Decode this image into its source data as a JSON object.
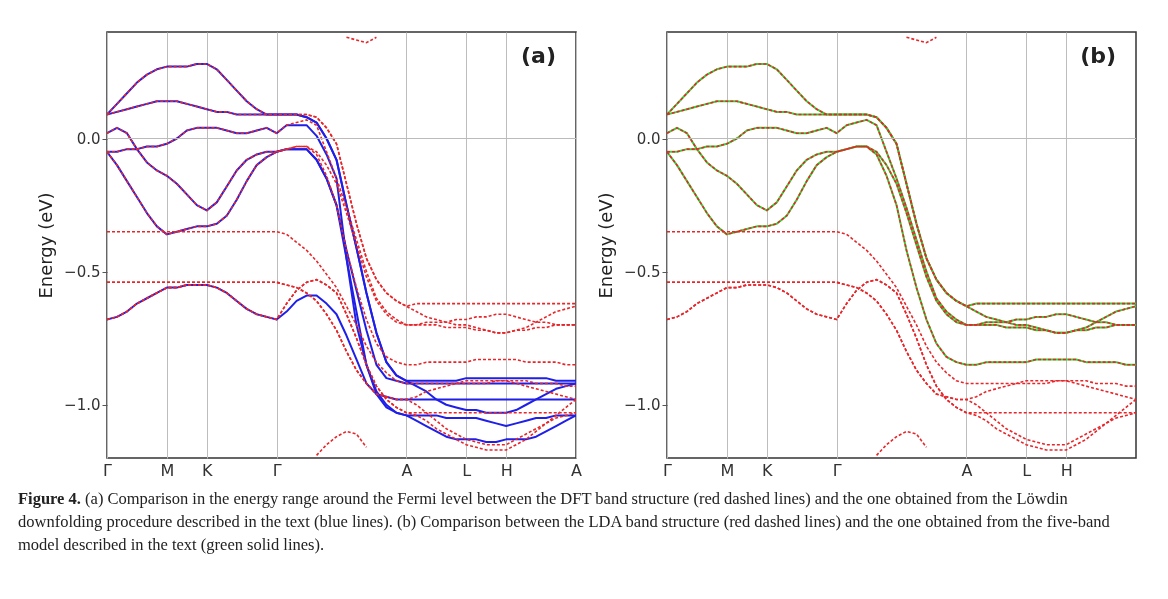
{
  "chart_data": [
    {
      "type": "line",
      "ylabel": "Energy (eV)",
      "annotations": [
        "(a)"
      ],
      "categories": [
        "Γ",
        null,
        null,
        null,
        null,
        null,
        "M",
        null,
        null,
        null,
        "K",
        null,
        null,
        null,
        null,
        null,
        null,
        "Γ",
        null,
        null,
        null,
        null,
        null,
        null,
        null,
        null,
        null,
        null,
        null,
        null,
        "A",
        null,
        null,
        null,
        null,
        null,
        "L",
        null,
        null,
        null,
        "H",
        null,
        null,
        null,
        null,
        null,
        null,
        "A"
      ],
      "ylim": [
        -1.2,
        0.4
      ],
      "yticks": [
        {
          "value": -1,
          "label": "−1.0"
        },
        {
          "value": -0.5,
          "label": "−0.5"
        },
        {
          "value": 0,
          "label": "0.0"
        }
      ],
      "grid": "x",
      "ref_lines": [
        {
          "axis": "y",
          "value": 0,
          "color": "#bbbbbb"
        }
      ],
      "series": [
        {
          "color": "#1f1fe8",
          "line_style": "solid",
          "values": [
            0.09,
            0.13,
            0.17,
            0.21,
            0.24,
            0.26,
            0.27,
            0.27,
            0.27,
            0.28,
            0.28,
            0.26,
            0.22,
            0.18,
            0.14,
            0.11,
            0.09,
            0.09,
            0.09,
            0.09,
            0.08,
            0.06,
            0,
            -0.08,
            -0.25,
            -0.41,
            -0.58,
            -0.73,
            -0.84,
            -0.89,
            -0.91,
            -0.91,
            -0.91,
            -0.91,
            -0.91,
            -0.91,
            -0.9,
            -0.9,
            -0.9,
            -0.9,
            -0.9,
            -0.9,
            -0.9,
            -0.9,
            -0.9,
            -0.91,
            -0.91,
            -0.91
          ]
        },
        {
          "color": "#1f1fe8",
          "line_style": "solid",
          "values": [
            0.09,
            0.1,
            0.11,
            0.12,
            0.13,
            0.14,
            0.14,
            0.14,
            0.13,
            0.12,
            0.11,
            0.1,
            0.1,
            0.09,
            0.09,
            0.09,
            0.09,
            0.09,
            0.09,
            0.09,
            0.08,
            0.06,
            0,
            -0.08,
            -0.25,
            -0.41,
            -0.58,
            -0.73,
            -0.84,
            -0.89,
            -0.91,
            -0.93,
            -0.95,
            -0.98,
            -1,
            -1.01,
            -1.02,
            -1.02,
            -1.03,
            -1.03,
            -1.03,
            -1.02,
            -1,
            -0.98,
            -0.96,
            -0.94,
            -0.93,
            -0.92
          ]
        },
        {
          "color": "#1f1fe8",
          "line_style": "solid",
          "values": [
            0.02,
            0.04,
            0.02,
            -0.04,
            -0.09,
            -0.12,
            -0.14,
            -0.17,
            -0.21,
            -0.25,
            -0.27,
            -0.24,
            -0.18,
            -0.12,
            -0.08,
            -0.06,
            -0.05,
            -0.05,
            -0.04,
            -0.04,
            -0.04,
            -0.08,
            -0.15,
            -0.25,
            -0.45,
            -0.65,
            -0.85,
            -0.96,
            -1.01,
            -1.03,
            -1.04,
            -1.06,
            -1.08,
            -1.1,
            -1.12,
            -1.13,
            -1.13,
            -1.13,
            -1.14,
            -1.14,
            -1.13,
            -1.13,
            -1.13,
            -1.12,
            -1.1,
            -1.08,
            -1.06,
            -1.04
          ]
        },
        {
          "color": "#1f1fe8",
          "line_style": "solid",
          "values": [
            -0.05,
            -0.05,
            -0.04,
            -0.04,
            -0.03,
            -0.03,
            -0.02,
            0,
            0.03,
            0.04,
            0.04,
            0.04,
            0.03,
            0.02,
            0.02,
            0.03,
            0.04,
            0.02,
            0.05,
            0.05,
            0.05,
            0.01,
            -0.06,
            -0.15,
            -0.45,
            -0.7,
            -0.85,
            -0.95,
            -1,
            -1.03,
            -1.04,
            -1.04,
            -1.04,
            -1.04,
            -1.05,
            -1.05,
            -1.05,
            -1.05,
            -1.06,
            -1.07,
            -1.08,
            -1.07,
            -1.06,
            -1.05,
            -1.05,
            -1.04,
            -1.04,
            -1.04
          ]
        },
        {
          "color": "#1f1fe8",
          "line_style": "solid",
          "values": [
            -0.05,
            -0.1,
            -0.16,
            -0.22,
            -0.28,
            -0.33,
            -0.36,
            -0.35,
            -0.34,
            -0.33,
            -0.33,
            -0.32,
            -0.29,
            -0.23,
            -0.16,
            -0.1,
            -0.07,
            -0.05,
            -0.04,
            -0.04,
            -0.04,
            -0.08,
            -0.15,
            -0.25,
            -0.42,
            -0.57,
            -0.72,
            -0.85,
            -0.9,
            -0.91,
            -0.92,
            -0.92,
            -0.92,
            -0.92,
            -0.92,
            -0.92,
            -0.92,
            -0.92,
            -0.92,
            -0.92,
            -0.92,
            -0.92,
            -0.92,
            -0.92,
            -0.92,
            -0.92,
            -0.92,
            -0.92
          ]
        },
        {
          "color": "#1f1fe8",
          "line_style": "solid",
          "values": [
            -0.68,
            -0.67,
            -0.65,
            -0.62,
            -0.6,
            -0.58,
            -0.56,
            -0.56,
            -0.55,
            -0.55,
            -0.55,
            -0.56,
            -0.58,
            -0.61,
            -0.64,
            -0.66,
            -0.67,
            -0.68,
            -0.65,
            -0.61,
            -0.59,
            -0.59,
            -0.62,
            -0.66,
            -0.74,
            -0.83,
            -0.92,
            -0.96,
            -0.97,
            -0.98,
            -0.98,
            -0.98,
            -0.98,
            -0.98,
            -0.98,
            -0.98,
            -0.98,
            -0.98,
            -0.98,
            -0.98,
            -0.98,
            -0.98,
            -0.98,
            -0.98,
            -0.98,
            -0.98,
            -0.98,
            -0.98
          ]
        },
        {
          "color": "#e8262a",
          "line_style": "dashed",
          "values": [
            0.09,
            0.13,
            0.17,
            0.21,
            0.24,
            0.26,
            0.27,
            0.27,
            0.27,
            0.28,
            0.28,
            0.26,
            0.22,
            0.18,
            0.14,
            0.11,
            0.09,
            0.09,
            0.09,
            0.09,
            0.09,
            0.08,
            0.04,
            -0.02,
            -0.17,
            -0.32,
            -0.45,
            -0.53,
            -0.58,
            -0.61,
            -0.63,
            -0.62,
            -0.62,
            -0.62,
            -0.62,
            -0.62,
            -0.62,
            -0.62,
            -0.62,
            -0.62,
            -0.62,
            -0.62,
            -0.62,
            -0.62,
            -0.62,
            -0.62,
            -0.62,
            -0.62
          ]
        },
        {
          "color": "#e8262a",
          "line_style": "dashed",
          "values": [
            0.09,
            0.1,
            0.11,
            0.12,
            0.13,
            0.14,
            0.14,
            0.14,
            0.13,
            0.12,
            0.11,
            0.1,
            0.1,
            0.09,
            0.09,
            0.09,
            0.09,
            0.09,
            0.09,
            0.09,
            0.09,
            0.08,
            0.04,
            -0.02,
            -0.17,
            -0.32,
            -0.45,
            -0.53,
            -0.58,
            -0.61,
            -0.63,
            -0.65,
            -0.67,
            -0.68,
            -0.69,
            -0.7,
            -0.7,
            -0.71,
            -0.72,
            -0.73,
            -0.73,
            -0.72,
            -0.71,
            -0.69,
            -0.67,
            -0.65,
            -0.64,
            -0.63
          ]
        },
        {
          "color": "#e8262a",
          "line_style": "dashed",
          "values": [
            -0.05,
            -0.05,
            -0.04,
            -0.04,
            -0.03,
            -0.03,
            -0.02,
            0,
            0.03,
            0.04,
            0.04,
            0.04,
            0.03,
            0.02,
            0.02,
            0.03,
            0.04,
            0.02,
            0.05,
            0.06,
            0.07,
            0.05,
            -0.05,
            -0.15,
            -0.26,
            -0.38,
            -0.5,
            -0.6,
            -0.65,
            -0.68,
            -0.7,
            -0.7,
            -0.69,
            -0.69,
            -0.69,
            -0.68,
            -0.68,
            -0.67,
            -0.67,
            -0.66,
            -0.66,
            -0.67,
            -0.68,
            -0.69,
            -0.69,
            -0.7,
            -0.7,
            -0.7
          ]
        },
        {
          "color": "#e8262a",
          "line_style": "dashed",
          "values": [
            0.02,
            0.04,
            0.02,
            -0.04,
            -0.09,
            -0.12,
            -0.14,
            -0.17,
            -0.21,
            -0.25,
            -0.27,
            -0.24,
            -0.18,
            -0.12,
            -0.08,
            -0.06,
            -0.05,
            -0.05,
            -0.04,
            -0.03,
            -0.03,
            -0.06,
            -0.14,
            -0.25,
            -0.42,
            -0.56,
            -0.68,
            -0.77,
            -0.82,
            -0.84,
            -0.85,
            -0.85,
            -0.84,
            -0.84,
            -0.84,
            -0.84,
            -0.84,
            -0.83,
            -0.83,
            -0.83,
            -0.83,
            -0.83,
            -0.84,
            -0.84,
            -0.84,
            -0.84,
            -0.85,
            -0.85
          ]
        },
        {
          "color": "#e8262a",
          "line_style": "dashed",
          "values": [
            -0.05,
            -0.1,
            -0.16,
            -0.22,
            -0.28,
            -0.33,
            -0.36,
            -0.35,
            -0.34,
            -0.33,
            -0.33,
            -0.32,
            -0.29,
            -0.23,
            -0.16,
            -0.1,
            -0.07,
            -0.05,
            -0.04,
            -0.03,
            -0.03,
            -0.05,
            -0.1,
            -0.17,
            -0.28,
            -0.4,
            -0.52,
            -0.61,
            -0.66,
            -0.69,
            -0.7,
            -0.7,
            -0.7,
            -0.7,
            -0.71,
            -0.71,
            -0.71,
            -0.72,
            -0.72,
            -0.73,
            -0.73,
            -0.72,
            -0.72,
            -0.71,
            -0.71,
            -0.7,
            -0.7,
            -0.7
          ]
        },
        {
          "color": "#e8262a",
          "line_style": "dashed",
          "values": [
            -0.68,
            -0.67,
            -0.65,
            -0.62,
            -0.6,
            -0.58,
            -0.56,
            -0.56,
            -0.55,
            -0.55,
            -0.55,
            -0.56,
            -0.58,
            -0.61,
            -0.64,
            -0.66,
            -0.67,
            -0.68,
            -0.62,
            -0.57,
            -0.54,
            -0.53,
            -0.55,
            -0.58,
            -0.66,
            -0.75,
            -0.85,
            -0.93,
            -0.98,
            -1.01,
            -1.03,
            -1.03,
            -1.03,
            -1.03,
            -1.03,
            -1.03,
            -1.03,
            -1.03,
            -1.03,
            -1.03,
            -1.03,
            -1.03,
            -1.03,
            -1.03,
            -1.03,
            -1.03,
            -1.03,
            -1.03
          ]
        },
        {
          "color": "#e8262a",
          "line_style": "dashed",
          "values": [
            -0.35,
            -0.35,
            -0.35,
            -0.35,
            -0.35,
            -0.35,
            -0.35,
            -0.35,
            -0.35,
            -0.35,
            -0.35,
            -0.35,
            -0.35,
            -0.35,
            -0.35,
            -0.35,
            -0.35,
            -0.35,
            -0.36,
            -0.39,
            -0.42,
            -0.46,
            -0.51,
            -0.56,
            -0.63,
            -0.7,
            -0.78,
            -0.84,
            -0.88,
            -0.91,
            -0.92,
            -0.92,
            -0.92,
            -0.92,
            -0.92,
            -0.92,
            -0.91,
            -0.91,
            -0.91,
            -0.91,
            -0.91,
            -0.91,
            -0.91,
            -0.92,
            -0.92,
            -0.92,
            -0.93,
            -0.93
          ]
        },
        {
          "color": "#e8262a",
          "line_style": "dashed",
          "values": [
            -0.54,
            -0.54,
            -0.54,
            -0.54,
            -0.54,
            -0.54,
            -0.54,
            -0.54,
            -0.54,
            -0.54,
            -0.54,
            -0.54,
            -0.54,
            -0.54,
            -0.54,
            -0.54,
            -0.54,
            -0.54,
            -0.55,
            -0.56,
            -0.58,
            -0.61,
            -0.66,
            -0.72,
            -0.8,
            -0.87,
            -0.92,
            -0.96,
            -0.97,
            -0.98,
            -0.98,
            -0.97,
            -0.95,
            -0.94,
            -0.93,
            -0.92,
            -0.92,
            -0.92,
            -0.92,
            -0.91,
            -0.91,
            -0.92,
            -0.93,
            -0.94,
            -0.95,
            -0.96,
            -0.97,
            -0.98
          ]
        },
        {
          "color": "#e8262a",
          "line_style": "dashed",
          "values": [
            -0.54,
            -0.54,
            -0.54,
            -0.54,
            -0.54,
            -0.54,
            -0.54,
            -0.54,
            -0.54,
            -0.54,
            -0.54,
            -0.54,
            -0.54,
            -0.54,
            -0.54,
            -0.54,
            -0.54,
            -0.54,
            -0.55,
            -0.56,
            -0.58,
            -0.61,
            -0.66,
            -0.72,
            -0.8,
            -0.87,
            -0.92,
            -0.96,
            -0.97,
            -0.98,
            -0.98,
            -1,
            -1.03,
            -1.06,
            -1.09,
            -1.11,
            -1.13,
            -1.14,
            -1.15,
            -1.15,
            -1.15,
            -1.13,
            -1.11,
            -1.09,
            -1.07,
            -1.05,
            -1.04,
            -1.03
          ]
        },
        {
          "color": "#e8262a",
          "line_style": "dashed",
          "values": [
            -0.68,
            -0.67,
            -0.65,
            -0.62,
            -0.6,
            -0.58,
            -0.56,
            -0.56,
            -0.55,
            -0.55,
            -0.55,
            -0.56,
            -0.58,
            -0.61,
            -0.64,
            -0.66,
            -0.67,
            -0.68,
            -0.62,
            -0.57,
            -0.54,
            -0.53,
            -0.55,
            -0.58,
            -0.66,
            -0.75,
            -0.85,
            -0.93,
            -0.98,
            -1.01,
            -1.03,
            -1.04,
            -1.06,
            -1.09,
            -1.11,
            -1.13,
            -1.15,
            -1.16,
            -1.17,
            -1.17,
            -1.17,
            -1.15,
            -1.13,
            -1.1,
            -1.07,
            -1.04,
            -1.01,
            -0.98
          ]
        },
        {
          "color": "#e8262a",
          "line_style": "dashed",
          "values": [
            null,
            null,
            null,
            null,
            null,
            null,
            null,
            null,
            null,
            null,
            null,
            null,
            null,
            null,
            null,
            null,
            null,
            null,
            null,
            null,
            null,
            -1.19,
            -1.15,
            -1.12,
            -1.1,
            -1.11,
            -1.16,
            null,
            null,
            null,
            null,
            null,
            null,
            null,
            null,
            null,
            null,
            null,
            null,
            null,
            null,
            null,
            null,
            null,
            null,
            null,
            null,
            null
          ]
        },
        {
          "color": "#e8262a",
          "line_style": "dashed",
          "values": [
            null,
            null,
            null,
            null,
            null,
            null,
            null,
            null,
            null,
            null,
            null,
            null,
            null,
            null,
            null,
            null,
            null,
            null,
            null,
            null,
            null,
            null,
            null,
            null,
            0.38,
            0.37,
            0.36,
            0.38,
            null,
            null,
            null,
            null,
            null,
            null,
            null,
            null,
            null,
            null,
            null,
            null,
            null,
            null,
            null,
            null,
            null,
            null,
            null,
            null
          ]
        }
      ]
    },
    {
      "type": "line",
      "ylabel": "Energy (eV)",
      "annotations": [
        "(b)",
        "Figure 4. (a) Comparison in the energy range around the Fermi level between the DFT band structure (red dashed lines) and the one obtained from the Löwdin downfolding procedure described in the text (blue lines). (b) Comparison between the LDA band structure (red dashed lines) and the one obtained from the five-band model described in the text (green solid lines)."
      ],
      "categories": [
        "Γ",
        null,
        null,
        null,
        null,
        null,
        "M",
        null,
        null,
        null,
        "K",
        null,
        null,
        null,
        null,
        null,
        null,
        "Γ",
        null,
        null,
        null,
        null,
        null,
        null,
        null,
        null,
        null,
        null,
        null,
        null,
        "A",
        null,
        null,
        null,
        null,
        null,
        "L",
        null,
        null,
        null,
        "H",
        null,
        null,
        null,
        null,
        null,
        null,
        null
      ],
      "ylim": [
        -1.2,
        0.4
      ],
      "yticks": [
        {
          "value": -1,
          "label": "−1.0"
        },
        {
          "value": -0.5,
          "label": "−0.5"
        },
        {
          "value": 0,
          "label": "0.0"
        }
      ],
      "grid": "x",
      "ref_lines": [
        {
          "axis": "y",
          "value": 0,
          "color": "#bbbbbb"
        }
      ],
      "series": [
        {
          "color": "#3ccf3c",
          "line_style": "solid",
          "values": [
            0.09,
            0.13,
            0.17,
            0.21,
            0.24,
            0.26,
            0.27,
            0.27,
            0.27,
            0.28,
            0.28,
            0.26,
            0.22,
            0.18,
            0.14,
            0.11,
            0.09,
            0.09,
            0.09,
            0.09,
            0.09,
            0.08,
            0.04,
            -0.02,
            -0.17,
            -0.32,
            -0.45,
            -0.53,
            -0.58,
            -0.61,
            -0.63,
            -0.62,
            -0.62,
            -0.62,
            -0.62,
            -0.62,
            -0.62,
            -0.62,
            -0.62,
            -0.62,
            -0.62,
            -0.62,
            -0.62,
            -0.62,
            -0.62,
            -0.62,
            -0.62,
            -0.62
          ]
        },
        {
          "color": "#3ccf3c",
          "line_style": "solid",
          "values": [
            0.09,
            0.1,
            0.11,
            0.12,
            0.13,
            0.14,
            0.14,
            0.14,
            0.13,
            0.12,
            0.11,
            0.1,
            0.1,
            0.09,
            0.09,
            0.09,
            0.09,
            0.09,
            0.09,
            0.09,
            0.09,
            0.08,
            0.04,
            -0.02,
            -0.17,
            -0.32,
            -0.45,
            -0.53,
            -0.58,
            -0.61,
            -0.63,
            -0.65,
            -0.67,
            -0.68,
            -0.69,
            -0.7,
            -0.7,
            -0.71,
            -0.72,
            -0.73,
            -0.73,
            -0.72,
            -0.71,
            -0.69,
            -0.67,
            -0.65,
            -0.64,
            -0.63
          ]
        },
        {
          "color": "#3ccf3c",
          "line_style": "solid",
          "values": [
            -0.05,
            -0.05,
            -0.04,
            -0.04,
            -0.03,
            -0.03,
            -0.02,
            0,
            0.03,
            0.04,
            0.04,
            0.04,
            0.03,
            0.02,
            0.02,
            0.03,
            0.04,
            0.02,
            0.05,
            0.06,
            0.07,
            0.05,
            -0.05,
            -0.15,
            -0.26,
            -0.38,
            -0.5,
            -0.6,
            -0.65,
            -0.68,
            -0.7,
            -0.7,
            -0.69,
            -0.69,
            -0.69,
            -0.68,
            -0.68,
            -0.67,
            -0.67,
            -0.66,
            -0.66,
            -0.67,
            -0.68,
            -0.69,
            -0.69,
            -0.7,
            -0.7,
            -0.7
          ]
        },
        {
          "color": "#3ccf3c",
          "line_style": "solid",
          "values": [
            0.02,
            0.04,
            0.02,
            -0.04,
            -0.09,
            -0.12,
            -0.14,
            -0.17,
            -0.21,
            -0.25,
            -0.27,
            -0.24,
            -0.18,
            -0.12,
            -0.08,
            -0.06,
            -0.05,
            -0.05,
            -0.04,
            -0.03,
            -0.03,
            -0.06,
            -0.14,
            -0.25,
            -0.42,
            -0.56,
            -0.68,
            -0.77,
            -0.82,
            -0.84,
            -0.85,
            -0.85,
            -0.84,
            -0.84,
            -0.84,
            -0.84,
            -0.84,
            -0.83,
            -0.83,
            -0.83,
            -0.83,
            -0.83,
            -0.84,
            -0.84,
            -0.84,
            -0.84,
            -0.85,
            -0.85
          ]
        },
        {
          "color": "#3ccf3c",
          "line_style": "solid",
          "values": [
            -0.05,
            -0.1,
            -0.16,
            -0.22,
            -0.28,
            -0.33,
            -0.36,
            -0.35,
            -0.34,
            -0.33,
            -0.33,
            -0.32,
            -0.29,
            -0.23,
            -0.16,
            -0.1,
            -0.07,
            -0.05,
            -0.04,
            -0.03,
            -0.03,
            -0.05,
            -0.1,
            -0.17,
            -0.28,
            -0.4,
            -0.52,
            -0.61,
            -0.66,
            -0.69,
            -0.7,
            -0.7,
            -0.7,
            -0.7,
            -0.71,
            -0.71,
            -0.71,
            -0.72,
            -0.72,
            -0.73,
            -0.73,
            -0.72,
            -0.72,
            -0.71,
            -0.71,
            -0.7,
            -0.7,
            -0.7
          ]
        },
        {
          "color": "#e8262a",
          "line_style": "dashed",
          "values": [
            0.09,
            0.13,
            0.17,
            0.21,
            0.24,
            0.26,
            0.27,
            0.27,
            0.27,
            0.28,
            0.28,
            0.26,
            0.22,
            0.18,
            0.14,
            0.11,
            0.09,
            0.09,
            0.09,
            0.09,
            0.09,
            0.08,
            0.04,
            -0.02,
            -0.17,
            -0.32,
            -0.45,
            -0.53,
            -0.58,
            -0.61,
            -0.63,
            -0.62,
            -0.62,
            -0.62,
            -0.62,
            -0.62,
            -0.62,
            -0.62,
            -0.62,
            -0.62,
            -0.62,
            -0.62,
            -0.62,
            -0.62,
            -0.62,
            -0.62,
            -0.62,
            -0.62
          ]
        },
        {
          "color": "#e8262a",
          "line_style": "dashed",
          "values": [
            0.09,
            0.1,
            0.11,
            0.12,
            0.13,
            0.14,
            0.14,
            0.14,
            0.13,
            0.12,
            0.11,
            0.1,
            0.1,
            0.09,
            0.09,
            0.09,
            0.09,
            0.09,
            0.09,
            0.09,
            0.09,
            0.08,
            0.04,
            -0.02,
            -0.17,
            -0.32,
            -0.45,
            -0.53,
            -0.58,
            -0.61,
            -0.63,
            -0.65,
            -0.67,
            -0.68,
            -0.69,
            -0.7,
            -0.7,
            -0.71,
            -0.72,
            -0.73,
            -0.73,
            -0.72,
            -0.71,
            -0.69,
            -0.67,
            -0.65,
            -0.64,
            -0.63
          ]
        },
        {
          "color": "#e8262a",
          "line_style": "dashed",
          "values": [
            -0.05,
            -0.05,
            -0.04,
            -0.04,
            -0.03,
            -0.03,
            -0.02,
            0,
            0.03,
            0.04,
            0.04,
            0.04,
            0.03,
            0.02,
            0.02,
            0.03,
            0.04,
            0.02,
            0.05,
            0.06,
            0.07,
            0.05,
            -0.05,
            -0.15,
            -0.26,
            -0.38,
            -0.5,
            -0.6,
            -0.65,
            -0.68,
            -0.7,
            -0.7,
            -0.69,
            -0.69,
            -0.69,
            -0.68,
            -0.68,
            -0.67,
            -0.67,
            -0.66,
            -0.66,
            -0.67,
            -0.68,
            -0.69,
            -0.69,
            -0.7,
            -0.7,
            -0.7
          ]
        },
        {
          "color": "#e8262a",
          "line_style": "dashed",
          "values": [
            0.02,
            0.04,
            0.02,
            -0.04,
            -0.09,
            -0.12,
            -0.14,
            -0.17,
            -0.21,
            -0.25,
            -0.27,
            -0.24,
            -0.18,
            -0.12,
            -0.08,
            -0.06,
            -0.05,
            -0.05,
            -0.04,
            -0.03,
            -0.03,
            -0.06,
            -0.14,
            -0.25,
            -0.42,
            -0.56,
            -0.68,
            -0.77,
            -0.82,
            -0.84,
            -0.85,
            -0.85,
            -0.84,
            -0.84,
            -0.84,
            -0.84,
            -0.84,
            -0.83,
            -0.83,
            -0.83,
            -0.83,
            -0.83,
            -0.84,
            -0.84,
            -0.84,
            -0.84,
            -0.85,
            -0.85
          ]
        },
        {
          "color": "#e8262a",
          "line_style": "dashed",
          "values": [
            -0.05,
            -0.1,
            -0.16,
            -0.22,
            -0.28,
            -0.33,
            -0.36,
            -0.35,
            -0.34,
            -0.33,
            -0.33,
            -0.32,
            -0.29,
            -0.23,
            -0.16,
            -0.1,
            -0.07,
            -0.05,
            -0.04,
            -0.03,
            -0.03,
            -0.05,
            -0.1,
            -0.17,
            -0.28,
            -0.4,
            -0.52,
            -0.61,
            -0.66,
            -0.69,
            -0.7,
            -0.7,
            -0.7,
            -0.7,
            -0.71,
            -0.71,
            -0.71,
            -0.72,
            -0.72,
            -0.73,
            -0.73,
            -0.72,
            -0.72,
            -0.71,
            -0.71,
            -0.7,
            -0.7,
            -0.7
          ]
        },
        {
          "color": "#e8262a",
          "line_style": "dashed",
          "values": [
            -0.68,
            -0.67,
            -0.65,
            -0.62,
            -0.6,
            -0.58,
            -0.56,
            -0.56,
            -0.55,
            -0.55,
            -0.55,
            -0.56,
            -0.58,
            -0.61,
            -0.64,
            -0.66,
            -0.67,
            -0.68,
            -0.62,
            -0.57,
            -0.54,
            -0.53,
            -0.55,
            -0.58,
            -0.66,
            -0.75,
            -0.85,
            -0.93,
            -0.98,
            -1.01,
            -1.03,
            -1.03,
            -1.03,
            -1.03,
            -1.03,
            -1.03,
            -1.03,
            -1.03,
            -1.03,
            -1.03,
            -1.03,
            -1.03,
            -1.03,
            -1.03,
            -1.03,
            -1.03,
            -1.03,
            -1.03
          ]
        },
        {
          "color": "#e8262a",
          "line_style": "dashed",
          "values": [
            -0.35,
            -0.35,
            -0.35,
            -0.35,
            -0.35,
            -0.35,
            -0.35,
            -0.35,
            -0.35,
            -0.35,
            -0.35,
            -0.35,
            -0.35,
            -0.35,
            -0.35,
            -0.35,
            -0.35,
            -0.35,
            -0.36,
            -0.39,
            -0.42,
            -0.46,
            -0.51,
            -0.56,
            -0.63,
            -0.7,
            -0.78,
            -0.84,
            -0.88,
            -0.91,
            -0.92,
            -0.92,
            -0.92,
            -0.92,
            -0.92,
            -0.92,
            -0.91,
            -0.91,
            -0.91,
            -0.91,
            -0.91,
            -0.91,
            -0.91,
            -0.92,
            -0.92,
            -0.92,
            -0.93,
            -0.93
          ]
        },
        {
          "color": "#e8262a",
          "line_style": "dashed",
          "values": [
            -0.54,
            -0.54,
            -0.54,
            -0.54,
            -0.54,
            -0.54,
            -0.54,
            -0.54,
            -0.54,
            -0.54,
            -0.54,
            -0.54,
            -0.54,
            -0.54,
            -0.54,
            -0.54,
            -0.54,
            -0.54,
            -0.55,
            -0.56,
            -0.58,
            -0.61,
            -0.66,
            -0.72,
            -0.8,
            -0.87,
            -0.92,
            -0.96,
            -0.97,
            -0.98,
            -0.98,
            -0.97,
            -0.95,
            -0.94,
            -0.93,
            -0.92,
            -0.92,
            -0.92,
            -0.92,
            -0.91,
            -0.91,
            -0.92,
            -0.93,
            -0.94,
            -0.95,
            -0.96,
            -0.97,
            -0.98
          ]
        },
        {
          "color": "#e8262a",
          "line_style": "dashed",
          "values": [
            -0.54,
            -0.54,
            -0.54,
            -0.54,
            -0.54,
            -0.54,
            -0.54,
            -0.54,
            -0.54,
            -0.54,
            -0.54,
            -0.54,
            -0.54,
            -0.54,
            -0.54,
            -0.54,
            -0.54,
            -0.54,
            -0.55,
            -0.56,
            -0.58,
            -0.61,
            -0.66,
            -0.72,
            -0.8,
            -0.87,
            -0.92,
            -0.96,
            -0.97,
            -0.98,
            -0.98,
            -1,
            -1.03,
            -1.06,
            -1.09,
            -1.11,
            -1.13,
            -1.14,
            -1.15,
            -1.15,
            -1.15,
            -1.13,
            -1.11,
            -1.09,
            -1.07,
            -1.05,
            -1.04,
            -1.03
          ]
        },
        {
          "color": "#e8262a",
          "line_style": "dashed",
          "values": [
            -0.68,
            -0.67,
            -0.65,
            -0.62,
            -0.6,
            -0.58,
            -0.56,
            -0.56,
            -0.55,
            -0.55,
            -0.55,
            -0.56,
            -0.58,
            -0.61,
            -0.64,
            -0.66,
            -0.67,
            -0.68,
            -0.62,
            -0.57,
            -0.54,
            -0.53,
            -0.55,
            -0.58,
            -0.66,
            -0.75,
            -0.85,
            -0.93,
            -0.98,
            -1.01,
            -1.03,
            -1.04,
            -1.06,
            -1.09,
            -1.11,
            -1.13,
            -1.15,
            -1.16,
            -1.17,
            -1.17,
            -1.17,
            -1.15,
            -1.13,
            -1.1,
            -1.07,
            -1.04,
            -1.01,
            -0.98
          ]
        },
        {
          "color": "#e8262a",
          "line_style": "dashed",
          "values": [
            null,
            null,
            null,
            null,
            null,
            null,
            null,
            null,
            null,
            null,
            null,
            null,
            null,
            null,
            null,
            null,
            null,
            null,
            null,
            null,
            null,
            -1.19,
            -1.15,
            -1.12,
            -1.1,
            -1.11,
            -1.16,
            null,
            null,
            null,
            null,
            null,
            null,
            null,
            null,
            null,
            null,
            null,
            null,
            null,
            null,
            null,
            null,
            null,
            null,
            null,
            null,
            null
          ]
        },
        {
          "color": "#e8262a",
          "line_style": "dashed",
          "values": [
            null,
            null,
            null,
            null,
            null,
            null,
            null,
            null,
            null,
            null,
            null,
            null,
            null,
            null,
            null,
            null,
            null,
            null,
            null,
            null,
            null,
            null,
            null,
            null,
            0.38,
            0.37,
            0.36,
            0.38,
            null,
            null,
            null,
            null,
            null,
            null,
            null,
            null,
            null,
            null,
            null,
            null,
            null,
            null,
            null,
            null,
            null,
            null,
            null,
            null
          ]
        }
      ]
    }
  ]
}
